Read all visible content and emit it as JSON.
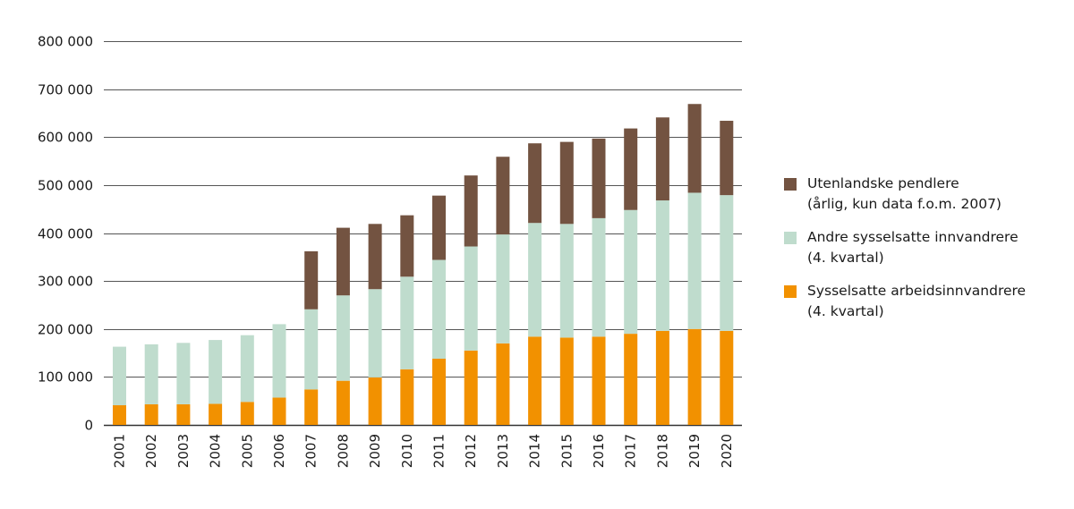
{
  "chart_data": {
    "type": "bar",
    "stacked": true,
    "title": "",
    "xlabel": "",
    "ylabel": "",
    "ylim": [
      0,
      800000
    ],
    "yticks": [
      0,
      100000,
      200000,
      300000,
      400000,
      500000,
      600000,
      700000,
      800000
    ],
    "ytick_labels": [
      "0",
      "100 000",
      "200 000",
      "300 000",
      "400 000",
      "500 000",
      "600 000",
      "700 000",
      "800 000"
    ],
    "grid": true,
    "legend_position": "right",
    "categories": [
      "2001",
      "2002",
      "2003",
      "2004",
      "2005",
      "2006",
      "2007",
      "2008",
      "2009",
      "2010",
      "2011",
      "2012",
      "2013",
      "2014",
      "2015",
      "2016",
      "2017",
      "2018",
      "2019",
      "2020"
    ],
    "series": [
      {
        "name": "Sysselsatte arbeidsinnvandrere (4. kvartal)",
        "legend_lines": [
          "Sysselsatte arbeidsinnvandrere",
          "(4. kvartal)"
        ],
        "color": "#f29100",
        "values": [
          41000,
          43000,
          43000,
          44000,
          48000,
          57000,
          74000,
          92000,
          99000,
          116000,
          138000,
          155000,
          170000,
          184000,
          182000,
          184000,
          190000,
          196000,
          200000,
          196000
        ]
      },
      {
        "name": "Andre sysselsatte innvandrere (4. kvartal)",
        "legend_lines": [
          "Andre sysselsatte innvandrere",
          "(4. kvartal)"
        ],
        "color": "#bfdccd",
        "values": [
          122000,
          125000,
          128000,
          133000,
          139000,
          153000,
          167000,
          178000,
          184000,
          193000,
          206000,
          217000,
          227000,
          237000,
          237000,
          247000,
          258000,
          272000,
          284000,
          283000
        ]
      },
      {
        "name": "Utenlandske pendlere (årlig, kun data f.o.m. 2007)",
        "legend_lines": [
          "Utenlandske pendlere",
          "(årlig, kun data f.o.m. 2007)"
        ],
        "color": "#735341",
        "values": [
          0,
          0,
          0,
          0,
          0,
          0,
          121000,
          141000,
          136000,
          128000,
          134000,
          148000,
          162000,
          166000,
          171000,
          166000,
          170000,
          173000,
          185000,
          155000
        ]
      }
    ],
    "legend_order": [
      2,
      1,
      0
    ]
  }
}
